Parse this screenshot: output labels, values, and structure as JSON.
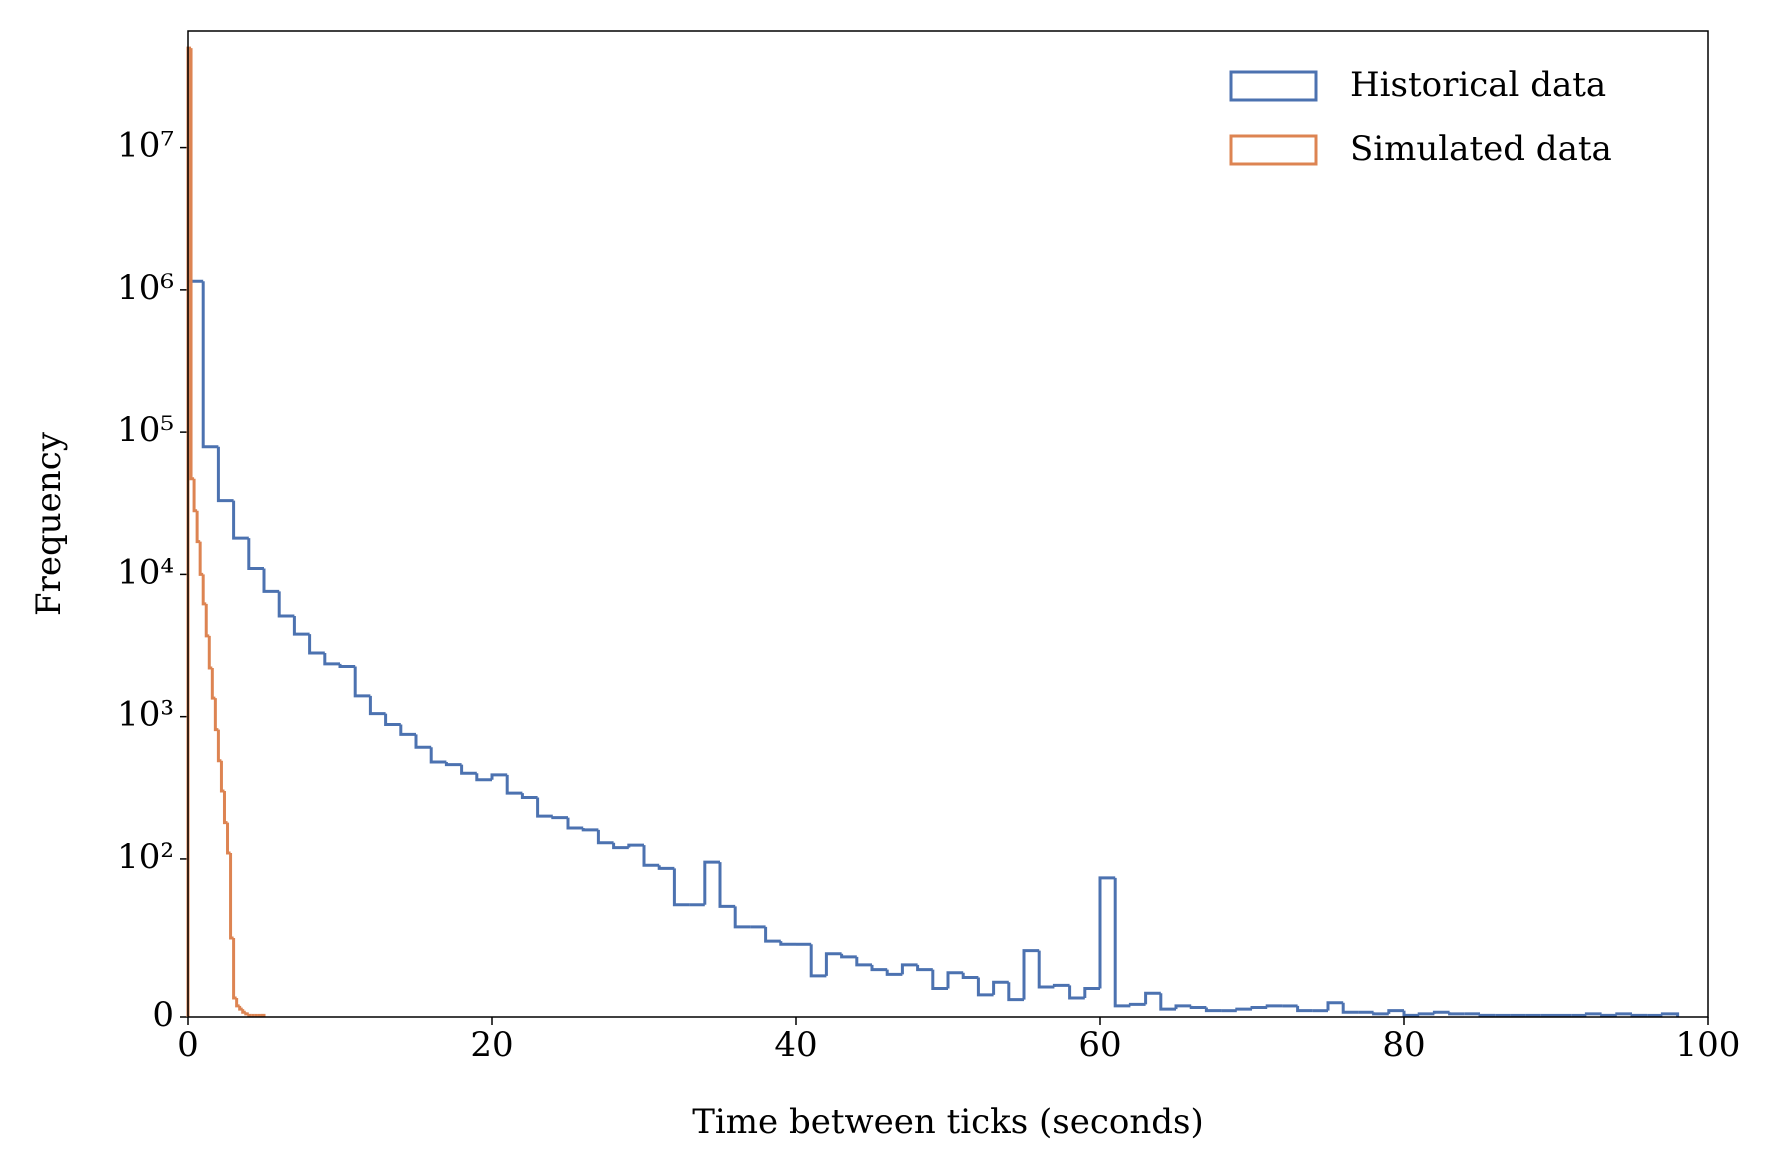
{
  "chart_data": {
    "type": "histogram",
    "xlabel": "Time between ticks (seconds)",
    "ylabel": "Frequency",
    "xlim": [
      0,
      100
    ],
    "xticks": [
      0,
      20,
      40,
      60,
      80,
      100
    ],
    "ylim": [
      0,
      66000000
    ],
    "yscale": "symlog",
    "linthresh": 100,
    "linscale": 1,
    "yticks": [
      0,
      {
        "value": 100,
        "label": "10²"
      },
      {
        "value": 1000,
        "label": "10³"
      },
      {
        "value": 10000,
        "label": "10⁴"
      },
      {
        "value": 100000,
        "label": "10⁵"
      },
      {
        "value": 1000000,
        "label": "10⁶"
      },
      {
        "value": 10000000,
        "label": "10⁷"
      }
    ],
    "legend": "upper right",
    "series": [
      {
        "name": "Historical data",
        "color": "#4c72b0",
        "bins": [
          0,
          1,
          2,
          3,
          4,
          5,
          6,
          7,
          8,
          9,
          10,
          11,
          12,
          13,
          14,
          15,
          16,
          17,
          18,
          19,
          20,
          21,
          22,
          23,
          24,
          25,
          26,
          27,
          28,
          29,
          30,
          31,
          32,
          33,
          34,
          35,
          36,
          37,
          38,
          39,
          40,
          41,
          42,
          43,
          44,
          45,
          46,
          47,
          48,
          49,
          50,
          51,
          52,
          53,
          54,
          55,
          56,
          57,
          58,
          59,
          60,
          61,
          62,
          63,
          64,
          65,
          66,
          67,
          68,
          69,
          70,
          71,
          72,
          73,
          74,
          75,
          76,
          77,
          78,
          79,
          80,
          81,
          82,
          83,
          84,
          85,
          86,
          87,
          88,
          89,
          90,
          91,
          92,
          93,
          94,
          95,
          96,
          97,
          98
        ],
        "values": [
          1150000,
          79000,
          33000,
          18000,
          11000,
          7600,
          5100,
          3800,
          2800,
          2350,
          2250,
          1400,
          1050,
          880,
          750,
          610,
          480,
          460,
          400,
          360,
          390,
          290,
          270,
          200,
          195,
          165,
          160,
          130,
          120,
          125,
          96,
          94,
          71,
          71,
          98,
          70,
          57,
          57,
          48,
          46,
          46,
          26,
          40,
          38,
          33,
          30,
          27,
          33,
          30,
          18,
          28,
          25,
          14,
          22,
          11,
          42,
          19,
          20,
          12,
          18,
          88,
          7,
          8,
          15,
          5,
          7,
          6,
          4,
          4,
          5,
          6,
          7,
          7,
          4,
          4,
          9,
          3,
          3,
          2,
          4,
          1,
          2,
          3,
          2,
          2,
          1,
          1,
          1,
          1,
          1,
          1,
          1,
          2,
          1,
          2,
          1,
          1,
          2
        ]
      },
      {
        "name": "Simulated data",
        "color": "#dd8452",
        "bins": [
          0,
          0.2,
          0.4,
          0.6,
          0.8,
          1,
          1.2,
          1.4,
          1.6,
          1.8,
          2,
          2.2,
          2.4,
          2.6,
          2.8,
          3,
          3.2,
          3.4,
          3.6,
          3.8,
          4,
          4.2,
          4.4,
          4.6,
          4.8,
          5
        ],
        "values": [
          50000000,
          47000,
          28000,
          17000,
          10000,
          6200,
          3700,
          2200,
          1350,
          810,
          490,
          300,
          180,
          110,
          50,
          12,
          7,
          5,
          3,
          2,
          1,
          1,
          1,
          1,
          1
        ]
      }
    ]
  }
}
